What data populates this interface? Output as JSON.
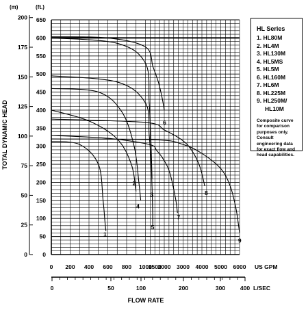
{
  "chart_data": {
    "type": "line",
    "title": "",
    "ylabel": "TOTAL DYNAMIC HEAD",
    "ylabel_m": "(m)",
    "ylabel_ft": "(ft.)",
    "xlabel": "FLOW RATE",
    "x_unit_gpm": "US GPM",
    "x_unit_lsec": "L/SEC",
    "grid": true,
    "xlim": [
      0,
      6000
    ],
    "ylim": [
      0,
      650
    ],
    "ft_ticks": [
      0,
      50,
      100,
      150,
      200,
      250,
      300,
      350,
      400,
      450,
      500,
      550,
      600,
      650
    ],
    "m_ticks": [
      0,
      25,
      50,
      75,
      100,
      125,
      150,
      175,
      200
    ],
    "gpm_ticks": [
      0,
      200,
      400,
      600,
      800,
      1000,
      1500,
      2000,
      3000,
      4000,
      5000,
      6000
    ],
    "lsec_ticks": [
      0,
      50,
      100,
      200,
      300,
      400
    ],
    "series": [
      {
        "label": "1",
        "points": [
          [
            0,
            313
          ],
          [
            300,
            305
          ],
          [
            500,
            250
          ],
          [
            550,
            150
          ],
          [
            570,
            90
          ],
          [
            580,
            65
          ]
        ],
        "label_at": [
          570,
          50
        ]
      },
      {
        "label": "2",
        "points": [
          [
            0,
            400
          ],
          [
            400,
            370
          ],
          [
            700,
            320
          ],
          [
            850,
            250
          ],
          [
            900,
            175
          ]
        ],
        "label_at": [
          880,
          192
        ]
      },
      {
        "label": "3",
        "points": [
          [
            0,
            600
          ],
          [
            700,
            585
          ],
          [
            1000,
            530
          ],
          [
            1200,
            420
          ],
          [
            1300,
            300
          ],
          [
            1350,
            210
          ]
        ],
        "label_at": [
          1340,
          160
        ]
      },
      {
        "label": "4",
        "points": [
          [
            0,
            460
          ],
          [
            500,
            450
          ],
          [
            750,
            395
          ],
          [
            880,
            300
          ],
          [
            930,
            200
          ],
          [
            950,
            150
          ]
        ],
        "label_at": [
          920,
          128
        ]
      },
      {
        "label": "5",
        "points": [
          [
            0,
            495
          ],
          [
            700,
            478
          ],
          [
            1000,
            420
          ],
          [
            1200,
            330
          ],
          [
            1320,
            230
          ],
          [
            1380,
            130
          ],
          [
            1390,
            80
          ]
        ],
        "label_at": [
          1380,
          70
        ]
      },
      {
        "label": "6",
        "points": [
          [
            0,
            603
          ],
          [
            600,
            600
          ],
          [
            1000,
            575
          ],
          [
            1400,
            520
          ],
          [
            1700,
            475
          ],
          [
            1900,
            430
          ],
          [
            2000,
            400
          ]
        ],
        "label_at": [
          2020,
          360
        ]
      },
      {
        "label": "7",
        "points": [
          [
            0,
            330
          ],
          [
            600,
            322
          ],
          [
            1200,
            305
          ],
          [
            1600,
            288
          ],
          [
            2000,
            260
          ],
          [
            2300,
            225
          ],
          [
            2600,
            155
          ],
          [
            2700,
            115
          ]
        ],
        "label_at": [
          2760,
          98
        ]
      },
      {
        "label": "8",
        "points": [
          [
            0,
            375
          ],
          [
            1000,
            366
          ],
          [
            2000,
            345
          ],
          [
            3000,
            315
          ],
          [
            3500,
            285
          ],
          [
            3900,
            242
          ],
          [
            4150,
            190
          ]
        ],
        "label_at": [
          4230,
          165
        ]
      },
      {
        "label": "9",
        "points": [
          [
            0,
            320
          ],
          [
            1500,
            318
          ],
          [
            3000,
            305
          ],
          [
            4000,
            280
          ],
          [
            5000,
            238
          ],
          [
            5500,
            190
          ],
          [
            5800,
            130
          ],
          [
            5950,
            80
          ],
          [
            6000,
            60
          ]
        ],
        "label_at": [
          6010,
          33
        ]
      }
    ]
  },
  "legend": {
    "title": "HL Series",
    "items": [
      "1. HL80M",
      "2. HL4M",
      "3. HL130M",
      "4. HL5MS",
      "5. HL5M",
      "6. HL160M",
      "7. HL6M",
      "8. HL225M",
      "9. HL250M/",
      "HL10M"
    ],
    "note": "Composite curve for comparison purposes only. Consult engineering data for exact flow and head capabilities."
  }
}
